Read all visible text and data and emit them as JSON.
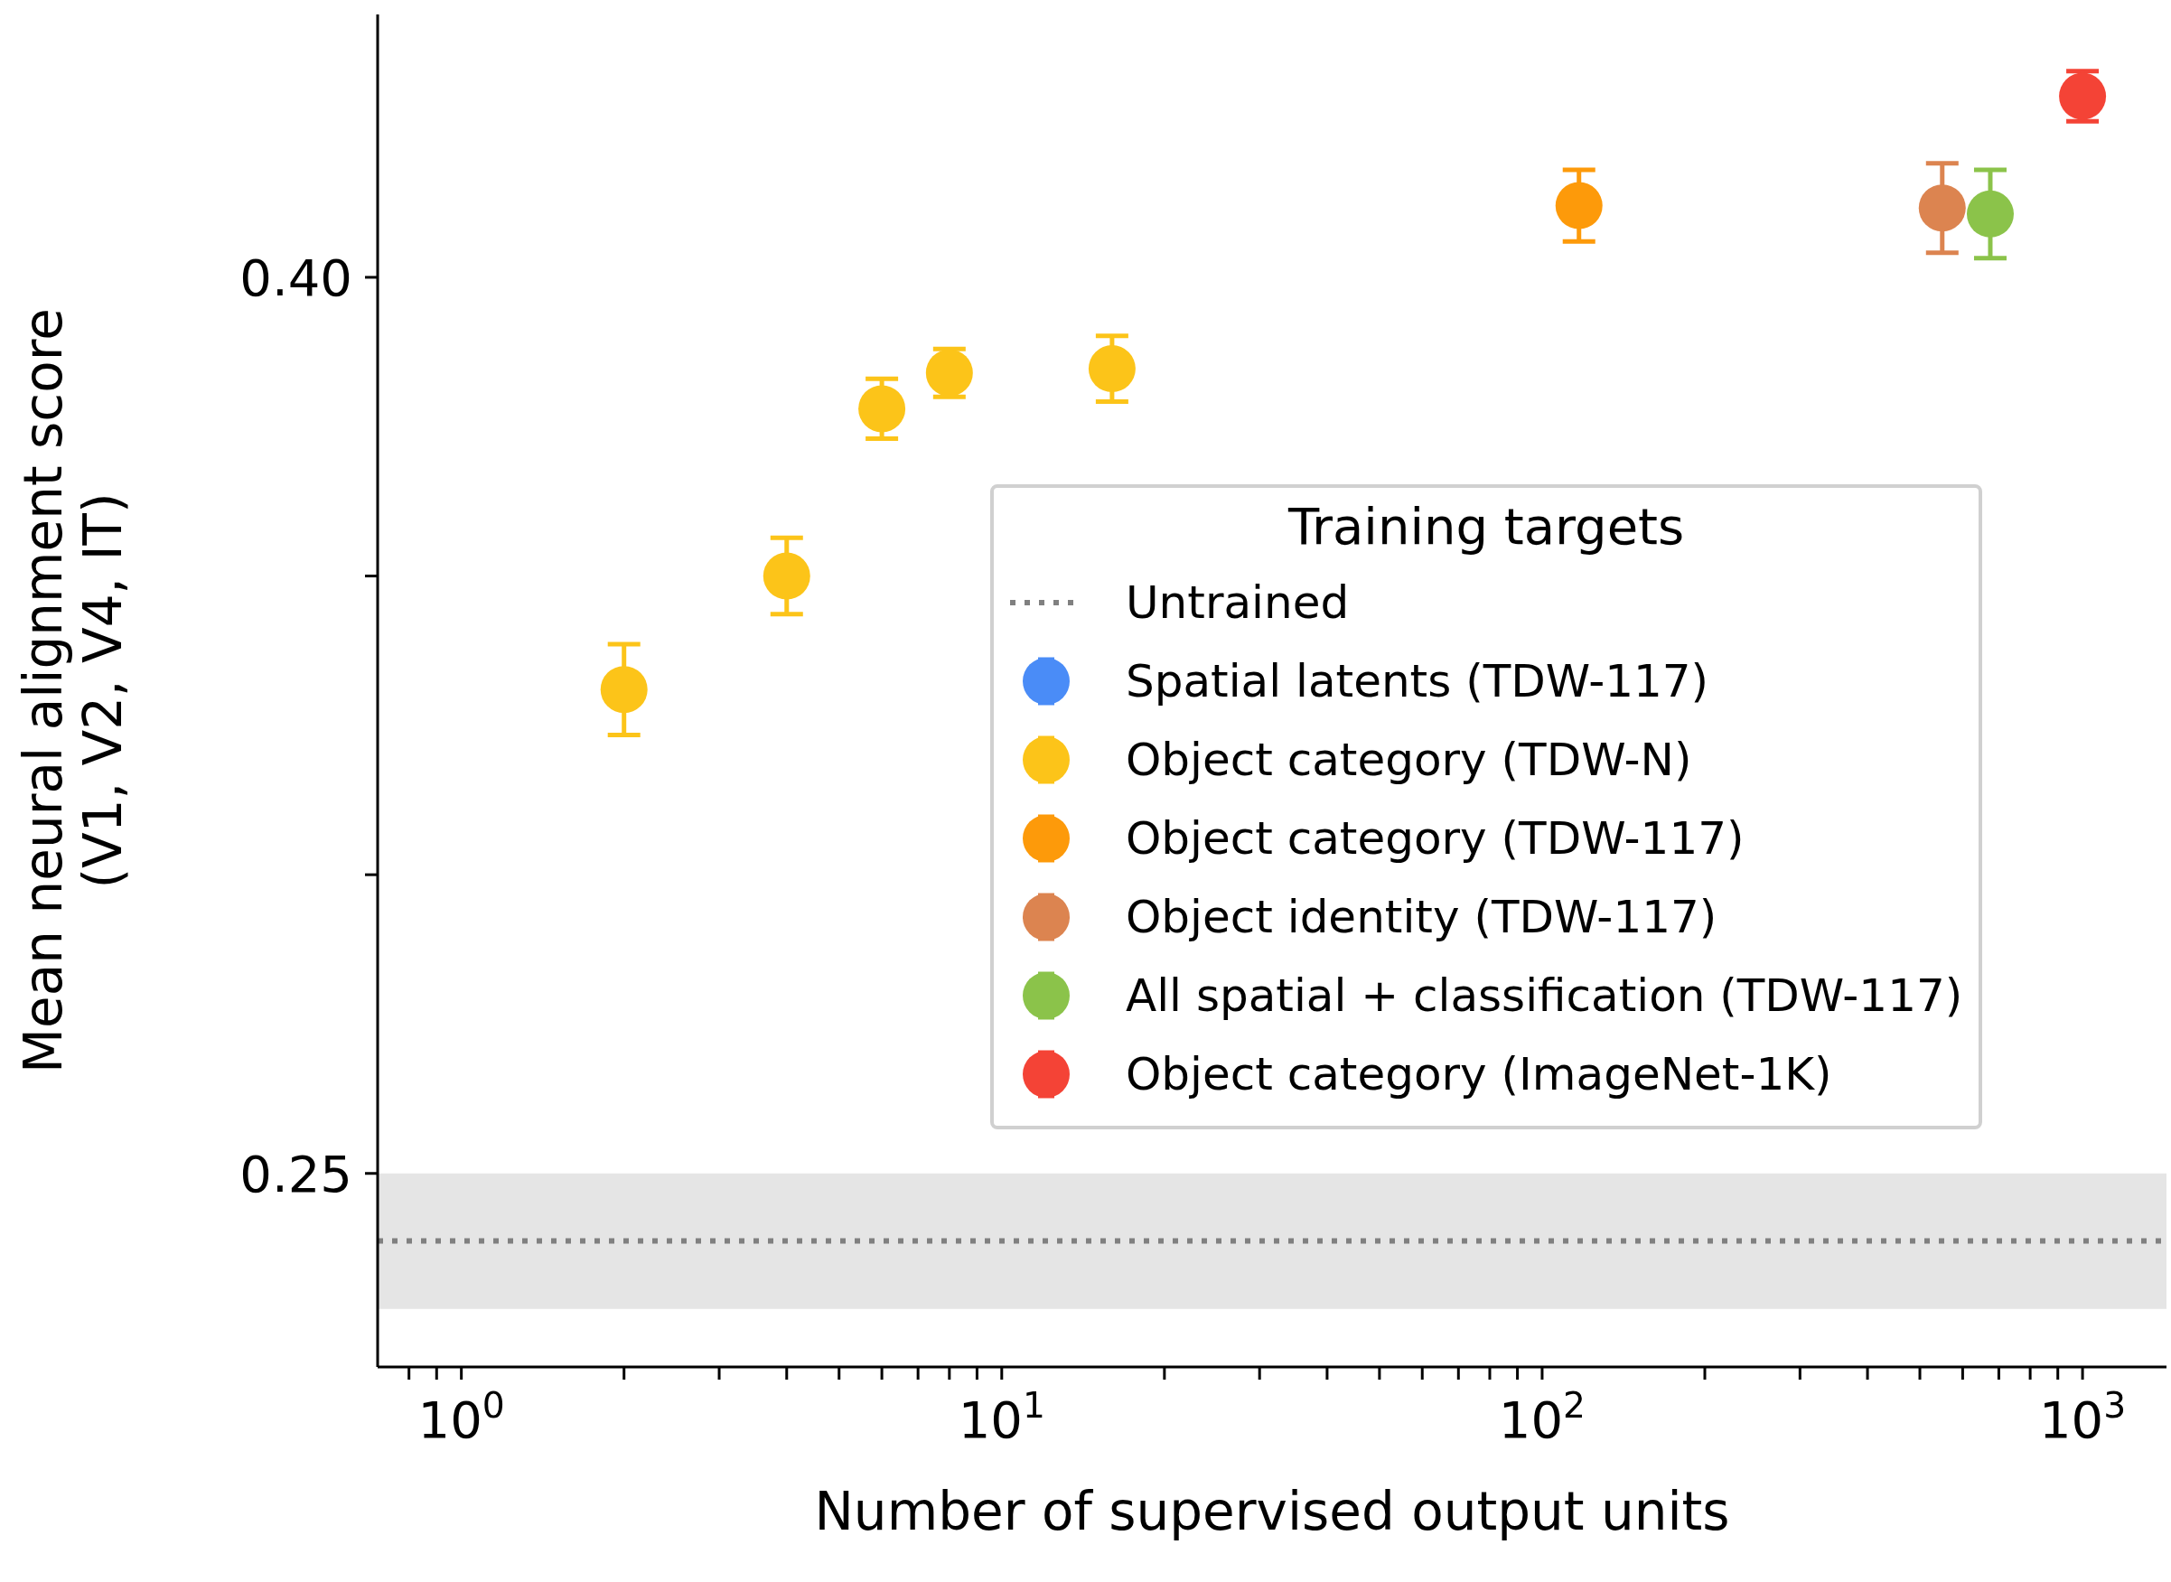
{
  "chart_data": {
    "type": "scatter",
    "xlabel": "Number of supervised output units",
    "ylabel": "Mean neural alignment score\n(V1, V2, V4, IT)",
    "legend_title": "Training targets",
    "log": "x",
    "legend": "right",
    "marker": "circle",
    "xlim": [
      0.7,
      1430
    ],
    "ylim": [
      0.2176,
      0.444
    ],
    "xticks": [
      {
        "value": 1,
        "label": "10$^{0}$"
      },
      {
        "value": 10,
        "label": "10$^{1}$"
      },
      {
        "value": 100,
        "label": "10$^{2}$"
      },
      {
        "value": 1000,
        "label": "10$^{3}$"
      },
      {
        "value": 0.8,
        "label": null
      },
      {
        "value": 0.9,
        "label": null
      },
      {
        "value": 2,
        "label": null
      },
      {
        "value": 3,
        "label": null
      },
      {
        "value": 4,
        "label": null
      },
      {
        "value": 5,
        "label": null
      },
      {
        "value": 6,
        "label": null
      },
      {
        "value": 7,
        "label": null
      },
      {
        "value": 8,
        "label": null
      },
      {
        "value": 9,
        "label": null
      },
      {
        "value": 20,
        "label": null
      },
      {
        "value": 30,
        "label": null
      },
      {
        "value": 40,
        "label": null
      },
      {
        "value": 50,
        "label": null
      },
      {
        "value": 60,
        "label": null
      },
      {
        "value": 70,
        "label": null
      },
      {
        "value": 80,
        "label": null
      },
      {
        "value": 90,
        "label": null
      },
      {
        "value": 200,
        "label": null
      },
      {
        "value": 300,
        "label": null
      },
      {
        "value": 400,
        "label": null
      },
      {
        "value": 500,
        "label": null
      },
      {
        "value": 600,
        "label": null
      },
      {
        "value": 700,
        "label": null
      },
      {
        "value": 800,
        "label": null
      },
      {
        "value": 900,
        "label": null
      }
    ],
    "yticks": [
      0.25,
      {
        "value": 0.3,
        "label": null
      },
      {
        "value": 0.35,
        "label": null
      },
      {
        "value": 0.4,
        "label": "0.40"
      }
    ],
    "ref_lines": [
      {
        "axis": "y",
        "value": 0.2387,
        "label": "Untrained",
        "color": "#808080",
        "line_style": "dotted"
      }
    ],
    "bands": [
      {
        "axis": "y",
        "from": 0.2273,
        "to": 0.25,
        "color": "#e5e5e5"
      }
    ],
    "series": [
      {
        "name": "Spatial latents (TDW-117)",
        "color": "#4a8cf7"
      },
      {
        "name": "Object category (TDW-N)",
        "color": "#fcc419",
        "x": [
          2,
          4,
          6,
          8,
          16
        ],
        "values": [
          0.331,
          0.35,
          0.378,
          0.384,
          0.3847
        ],
        "errors": [
          0.0076,
          0.0064,
          0.005,
          0.004,
          0.0055
        ]
      },
      {
        "name": "Object category (TDW-117)",
        "color": "#fd9a0a",
        "x": [
          117
        ],
        "values": [
          0.412
        ],
        "errors": [
          0.006
        ]
      },
      {
        "name": "Object identity (TDW-117)",
        "color": "#dc8450",
        "x": [
          550
        ],
        "values": [
          0.4116
        ],
        "errors": [
          0.0075
        ]
      },
      {
        "name": "All spatial + classification (TDW-117)",
        "color": "#8bc34a",
        "x": [
          675
        ],
        "values": [
          0.4106
        ],
        "errors": [
          0.0074
        ]
      },
      {
        "name": "Object category (ImageNet-1K)",
        "color": "#f44336",
        "x": [
          1000
        ],
        "values": [
          0.4303
        ],
        "errors": [
          0.0042
        ]
      }
    ]
  }
}
